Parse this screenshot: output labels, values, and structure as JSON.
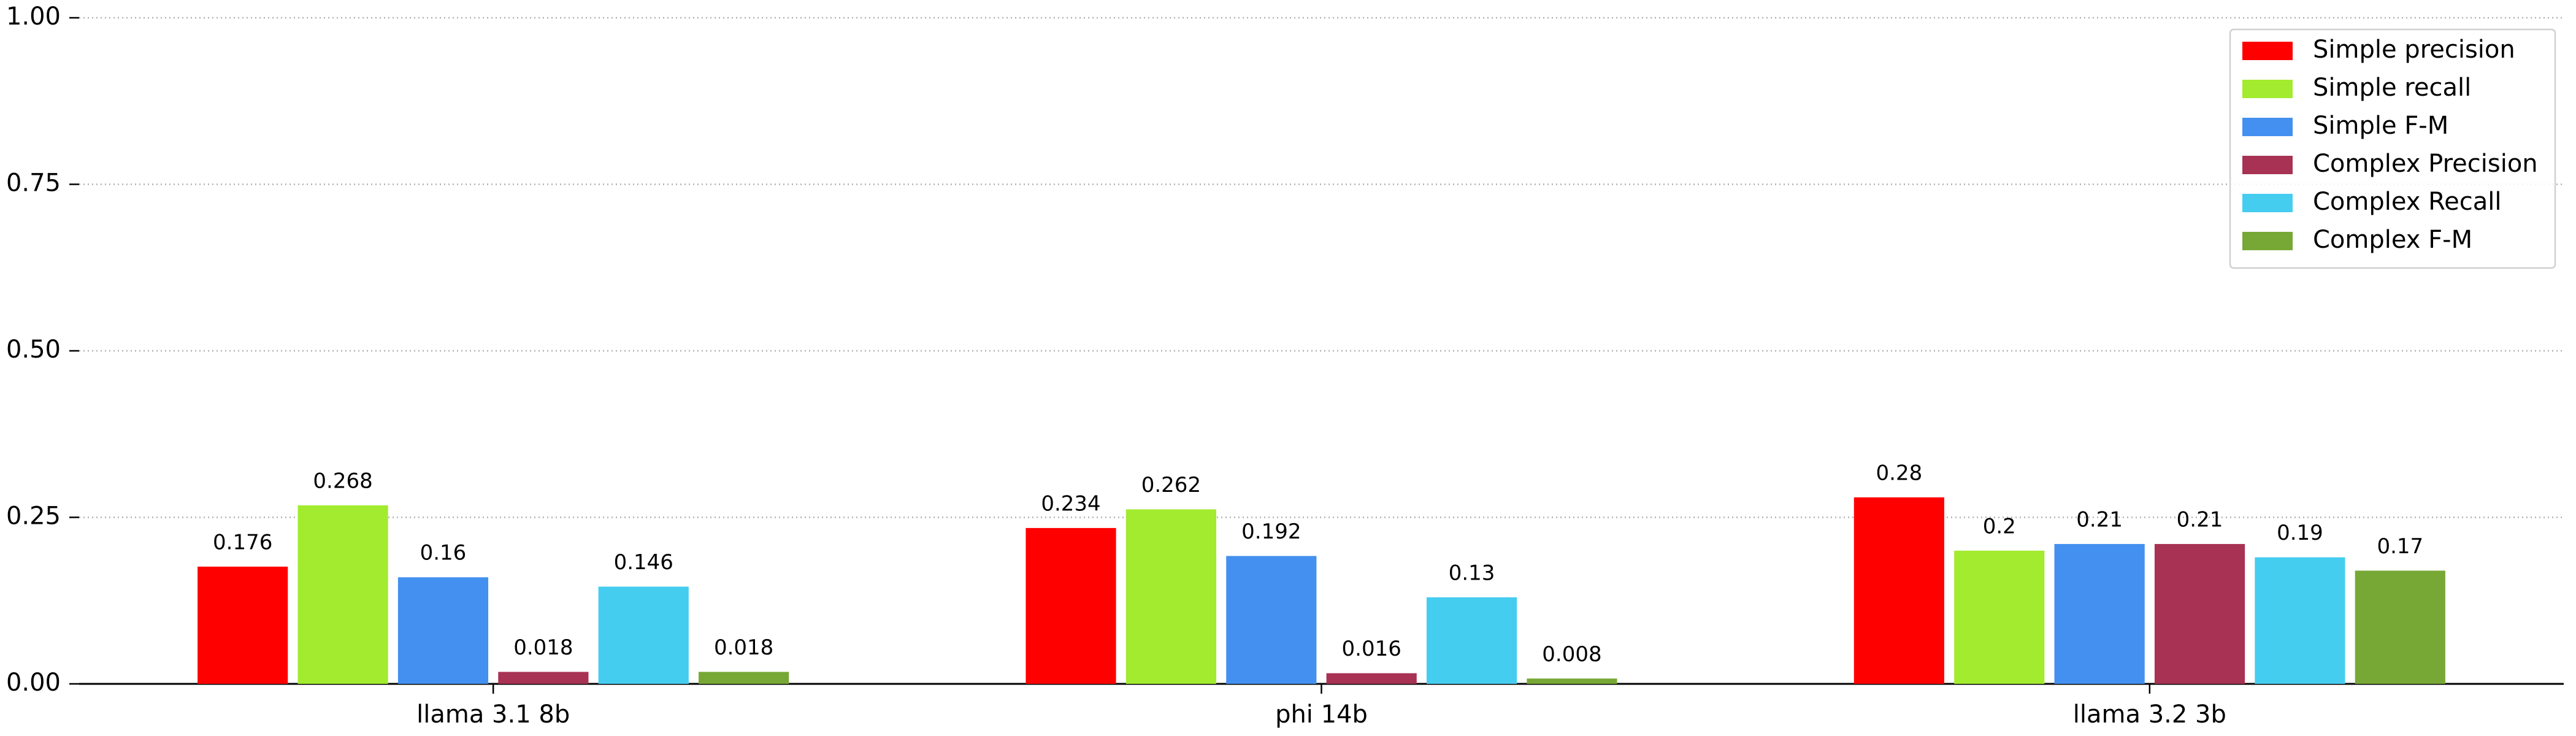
{
  "chart_data": {
    "type": "bar",
    "categories": [
      "llama 3.1 8b",
      "phi 14b",
      "llama 3.2 3b"
    ],
    "series": [
      {
        "name": "Simple precision",
        "color": "#ff0000",
        "values": [
          0.176,
          0.234,
          0.28
        ]
      },
      {
        "name": "Simple recall",
        "color": "#a2eb2f",
        "values": [
          0.268,
          0.262,
          0.2
        ]
      },
      {
        "name": "Simple F-M",
        "color": "#4390f0",
        "values": [
          0.16,
          0.192,
          0.21
        ]
      },
      {
        "name": "Complex Precision",
        "color": "#a83254",
        "values": [
          0.018,
          0.016,
          0.21
        ]
      },
      {
        "name": "Complex Recall",
        "color": "#45cdf0",
        "values": [
          0.146,
          0.13,
          0.19
        ]
      },
      {
        "name": "Complex F-M",
        "color": "#77a836",
        "values": [
          0.018,
          0.008,
          0.17
        ]
      }
    ],
    "ylim": [
      0,
      1
    ],
    "yticks": [
      {
        "value": 0,
        "label": "0.00"
      },
      {
        "value": 0.25,
        "label": "0.25"
      },
      {
        "value": 0.5,
        "label": "0.50"
      },
      {
        "value": 0.75,
        "label": "0.75"
      },
      {
        "value": 1,
        "label": "1.00"
      }
    ],
    "grid": true,
    "legend": "upper right"
  }
}
